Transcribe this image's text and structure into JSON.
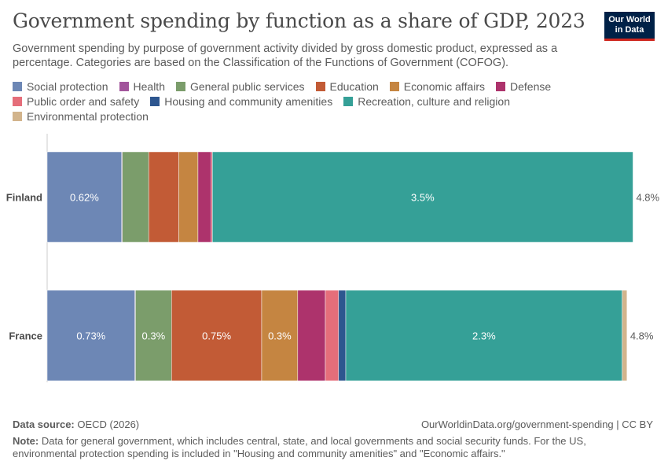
{
  "header": {
    "title": "Government spending by function as a share of GDP, 2023",
    "subtitle": "Government spending by purpose of government activity divided by gross domestic product, expressed as a percentage. Categories are based on the Classification of the Functions of Government (COFOG).",
    "logo_line1": "Our World",
    "logo_line2": "in Data"
  },
  "footer": {
    "source_label": "Data source:",
    "source_value": "OECD (2026)",
    "url": "OurWorldinData.org/government-spending | CC BY",
    "note_label": "Note:",
    "note_text": "Data for general government, which includes central, state, and local governments and social security funds. For the US, environmental protection spending is included in \"Housing and community amenities\" and \"Economic affairs.\""
  },
  "chart_data": {
    "type": "bar",
    "orientation": "horizontal",
    "stacked": true,
    "categories": [
      "Finland",
      "France"
    ],
    "series": [
      {
        "name": "Social protection",
        "color": "#6d87b5",
        "values": [
          0.62,
          0.73
        ],
        "labels": [
          "0.62%",
          "0.73%"
        ]
      },
      {
        "name": "Health",
        "color": "#a2559c",
        "values": [
          0.005,
          0.005
        ],
        "labels": [
          "",
          ""
        ]
      },
      {
        "name": "General public services",
        "color": "#7b9d6b",
        "values": [
          0.22,
          0.3
        ],
        "labels": [
          "",
          "0.3%"
        ]
      },
      {
        "name": "Education",
        "color": "#c25b36",
        "values": [
          0.25,
          0.75
        ],
        "labels": [
          "",
          "0.75%"
        ]
      },
      {
        "name": "Economic affairs",
        "color": "#c58541",
        "values": [
          0.16,
          0.3
        ],
        "labels": [
          "",
          "0.3%"
        ]
      },
      {
        "name": "Defense",
        "color": "#ad336c",
        "values": [
          0.11,
          0.23
        ],
        "labels": [
          "",
          ""
        ]
      },
      {
        "name": "Public order and safety",
        "color": "#e56e7a",
        "values": [
          0.01,
          0.11
        ],
        "labels": [
          "",
          ""
        ]
      },
      {
        "name": "Housing and community amenities",
        "color": "#2d568f",
        "values": [
          0.0,
          0.06
        ],
        "labels": [
          "",
          ""
        ]
      },
      {
        "name": "Recreation, culture and religion",
        "color": "#35a097",
        "values": [
          3.5,
          2.3
        ],
        "labels": [
          "3.5%",
          "2.3%"
        ]
      },
      {
        "name": "Environmental protection",
        "color": "#d2b48c",
        "values": [
          0.0,
          0.04
        ],
        "labels": [
          "",
          ""
        ]
      }
    ],
    "totals": [
      "4.8%",
      "4.8%"
    ],
    "xlim": [
      0,
      4.8
    ],
    "grid": false,
    "legend_position": "top"
  }
}
